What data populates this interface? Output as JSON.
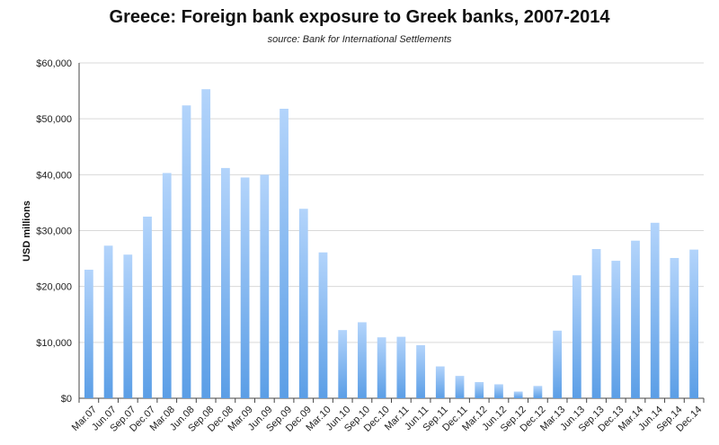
{
  "chart_data": {
    "type": "bar",
    "title": "Greece: Foreign bank exposure to Greek banks, 2007-2014",
    "subtitle": "source: Bank for International Settlements",
    "xlabel": "",
    "ylabel": "USD millions",
    "ylim": [
      0,
      60000
    ],
    "yticks": [
      0,
      10000,
      20000,
      30000,
      40000,
      50000,
      60000
    ],
    "ytick_labels": [
      "$0",
      "$10,000",
      "$20,000",
      "$30,000",
      "$40,000",
      "$50,000",
      "$60,000"
    ],
    "grid": true,
    "legend": "none",
    "bar_color_top": "#b3d4fb",
    "bar_color_bottom": "#5b9ee6",
    "categories": [
      "Mar.07",
      "Jun.07",
      "Sep.07",
      "Dec.07",
      "Mar.08",
      "Jun.08",
      "Sep.08",
      "Dec.08",
      "Mar.09",
      "Jun.09",
      "Sep.09",
      "Dec.09",
      "Mar.10",
      "Jun.10",
      "Sep.10",
      "Dec.10",
      "Mar.11",
      "Jun.11",
      "Sep.11",
      "Dec.11",
      "Mar.12",
      "Jun.12",
      "Sep.12",
      "Dec.12",
      "Mar.13",
      "Jun.13",
      "Sep.13",
      "Dec.13",
      "Mar.14",
      "Jun.14",
      "Sep.14",
      "Dec.14"
    ],
    "values": [
      23000,
      27300,
      25700,
      32500,
      40300,
      52400,
      55300,
      41200,
      39500,
      40000,
      51800,
      33900,
      26100,
      12200,
      13600,
      10900,
      11000,
      9500,
      5700,
      4000,
      2900,
      2500,
      1200,
      2200,
      12100,
      22000,
      26700,
      24600,
      28200,
      31400,
      25100,
      26600
    ]
  }
}
